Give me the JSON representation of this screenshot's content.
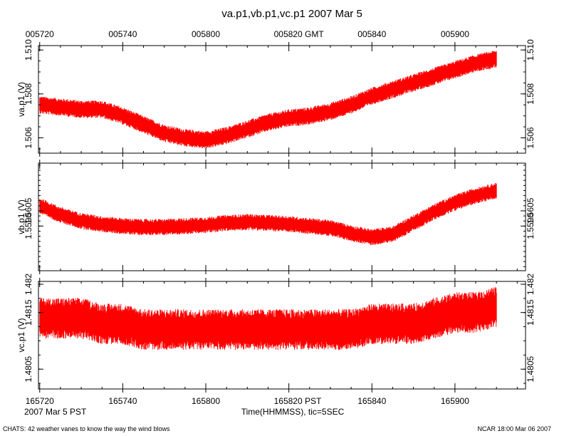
{
  "chart_data": {
    "type": "line",
    "title": "va.p1,vb.p1,vc.p1 2007 Mar 5",
    "top_axis": {
      "ticks": [
        {
          "t": 0,
          "label": "005720"
        },
        {
          "t": 20,
          "label": "005740"
        },
        {
          "t": 40,
          "label": "005800"
        },
        {
          "t": 60,
          "label": "005820 GMT"
        },
        {
          "t": 80,
          "label": "005840"
        },
        {
          "t": 100,
          "label": "005900"
        }
      ]
    },
    "bottom_axis": {
      "xlabel": "Time(HHMMSS), tic=5SEC",
      "date_label": "2007 Mar  5 PST",
      "range_seconds": [
        -0.3,
        117
      ],
      "minor_tick_step": 5,
      "ticks": [
        {
          "t": 0,
          "label": "165720"
        },
        {
          "t": 20,
          "label": "165740"
        },
        {
          "t": 40,
          "label": "165800"
        },
        {
          "t": 60,
          "label": "165820 PST"
        },
        {
          "t": 80,
          "label": "165840"
        },
        {
          "t": 100,
          "label": "165900"
        }
      ]
    },
    "series": [
      {
        "name": "va.p1",
        "ylabel": "va.p1 (V)",
        "color": "#ff0000",
        "ylim": [
          1.5053,
          1.5102
        ],
        "y_ticks": [
          {
            "value": 1.506,
            "label": "1.506"
          },
          {
            "value": 1.508,
            "label": "1.508"
          },
          {
            "value": 1.51,
            "label": "1.510"
          }
        ],
        "y_minor_step": 0.0005,
        "t": [
          0,
          5,
          10,
          15,
          20,
          25,
          30,
          35,
          40,
          45,
          50,
          55,
          60,
          65,
          70,
          75,
          80,
          85,
          90,
          95,
          100,
          105,
          110
        ],
        "center": [
          1.5075,
          1.5074,
          1.5073,
          1.5073,
          1.507,
          1.5066,
          1.5062,
          1.506,
          1.5059,
          1.5061,
          1.5064,
          1.5067,
          1.5069,
          1.507,
          1.5072,
          1.5075,
          1.5079,
          1.5082,
          1.5085,
          1.5088,
          1.5091,
          1.5094,
          1.5096
        ],
        "band_halfwidth": 0.0004
      },
      {
        "name": "vb.p1",
        "ylabel": "vb.p1 (V)",
        "color": "#ff0000",
        "ylim": [
          1.5546,
          1.5652
        ],
        "y_ticks": [
          {
            "value": 1.559,
            "label": "1.5590"
          },
          {
            "value": 1.5605,
            "label": "1.5605"
          }
        ],
        "y_minor_step": 0.0005,
        "t": [
          0,
          5,
          10,
          15,
          20,
          25,
          30,
          35,
          40,
          45,
          50,
          55,
          60,
          65,
          70,
          75,
          80,
          85,
          90,
          95,
          100,
          105,
          110
        ],
        "center": [
          1.561,
          1.5601,
          1.5595,
          1.5592,
          1.559,
          1.5589,
          1.5589,
          1.559,
          1.5591,
          1.5593,
          1.5594,
          1.5593,
          1.5592,
          1.559,
          1.5588,
          1.5583,
          1.5579,
          1.5582,
          1.5593,
          1.5604,
          1.5613,
          1.562,
          1.5625
        ],
        "band_halfwidth": 0.0008
      },
      {
        "name": "vc.p1",
        "ylabel": "vc.p1 (V)",
        "color": "#ff0000",
        "ylim": [
          1.48015,
          1.48205
        ],
        "y_ticks": [
          {
            "value": 1.4805,
            "label": "1.4805"
          },
          {
            "value": 1.4815,
            "label": "1.4815"
          },
          {
            "value": 1.482,
            "label": "1.482"
          }
        ],
        "y_minor_step": 0.00025,
        "t": [
          0,
          5,
          10,
          15,
          20,
          25,
          30,
          35,
          40,
          45,
          50,
          55,
          60,
          65,
          70,
          75,
          80,
          85,
          90,
          95,
          100,
          105,
          110
        ],
        "center": [
          1.4814,
          1.4814,
          1.4814,
          1.4813,
          1.4813,
          1.4812,
          1.4812,
          1.4812,
          1.4812,
          1.4812,
          1.4812,
          1.4812,
          1.4812,
          1.4812,
          1.4812,
          1.4812,
          1.4813,
          1.4813,
          1.4813,
          1.4814,
          1.4815,
          1.4815,
          1.4816
        ],
        "band_halfwidth": 0.00036
      }
    ]
  },
  "footer": {
    "left": "CHATS: 42 weather vanes to know the way the wind blows",
    "right": "NCAR 18:00 Mar 06 2007"
  }
}
